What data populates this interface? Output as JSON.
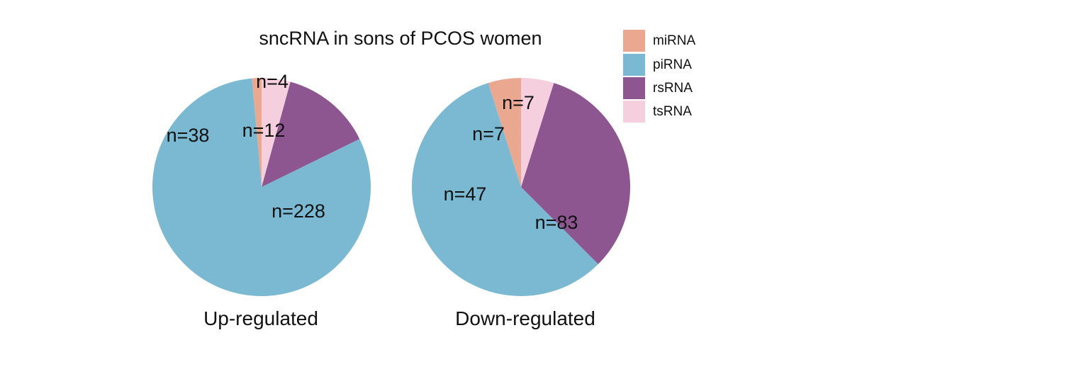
{
  "chart_data": {
    "type": "pie",
    "title": "sncRNA in sons of PCOS women",
    "legend": {
      "placement": "top-right",
      "entries": [
        {
          "label": "miRNA",
          "color": "#EBA890"
        },
        {
          "label": "piRNA",
          "color": "#7BB9D2"
        },
        {
          "label": "rsRNA",
          "color": "#8D5690"
        },
        {
          "label": "tsRNA",
          "color": "#F6CFDF"
        }
      ]
    },
    "pies": [
      {
        "caption": "Up-regulated",
        "slices": [
          {
            "category": "miRNA",
            "value": 4,
            "label": "n=4"
          },
          {
            "category": "piRNA",
            "value": 228,
            "label": "n=228"
          },
          {
            "category": "rsRNA",
            "value": 38,
            "label": "n=38"
          },
          {
            "category": "tsRNA",
            "value": 12,
            "label": "n=12"
          }
        ]
      },
      {
        "caption": "Down-regulated",
        "slices": [
          {
            "category": "miRNA",
            "value": 7,
            "label": "n=7"
          },
          {
            "category": "piRNA",
            "value": 83,
            "label": "n=83"
          },
          {
            "category": "rsRNA",
            "value": 47,
            "label": "n=47"
          },
          {
            "category": "tsRNA",
            "value": 7,
            "label": "n=7"
          }
        ]
      }
    ]
  }
}
